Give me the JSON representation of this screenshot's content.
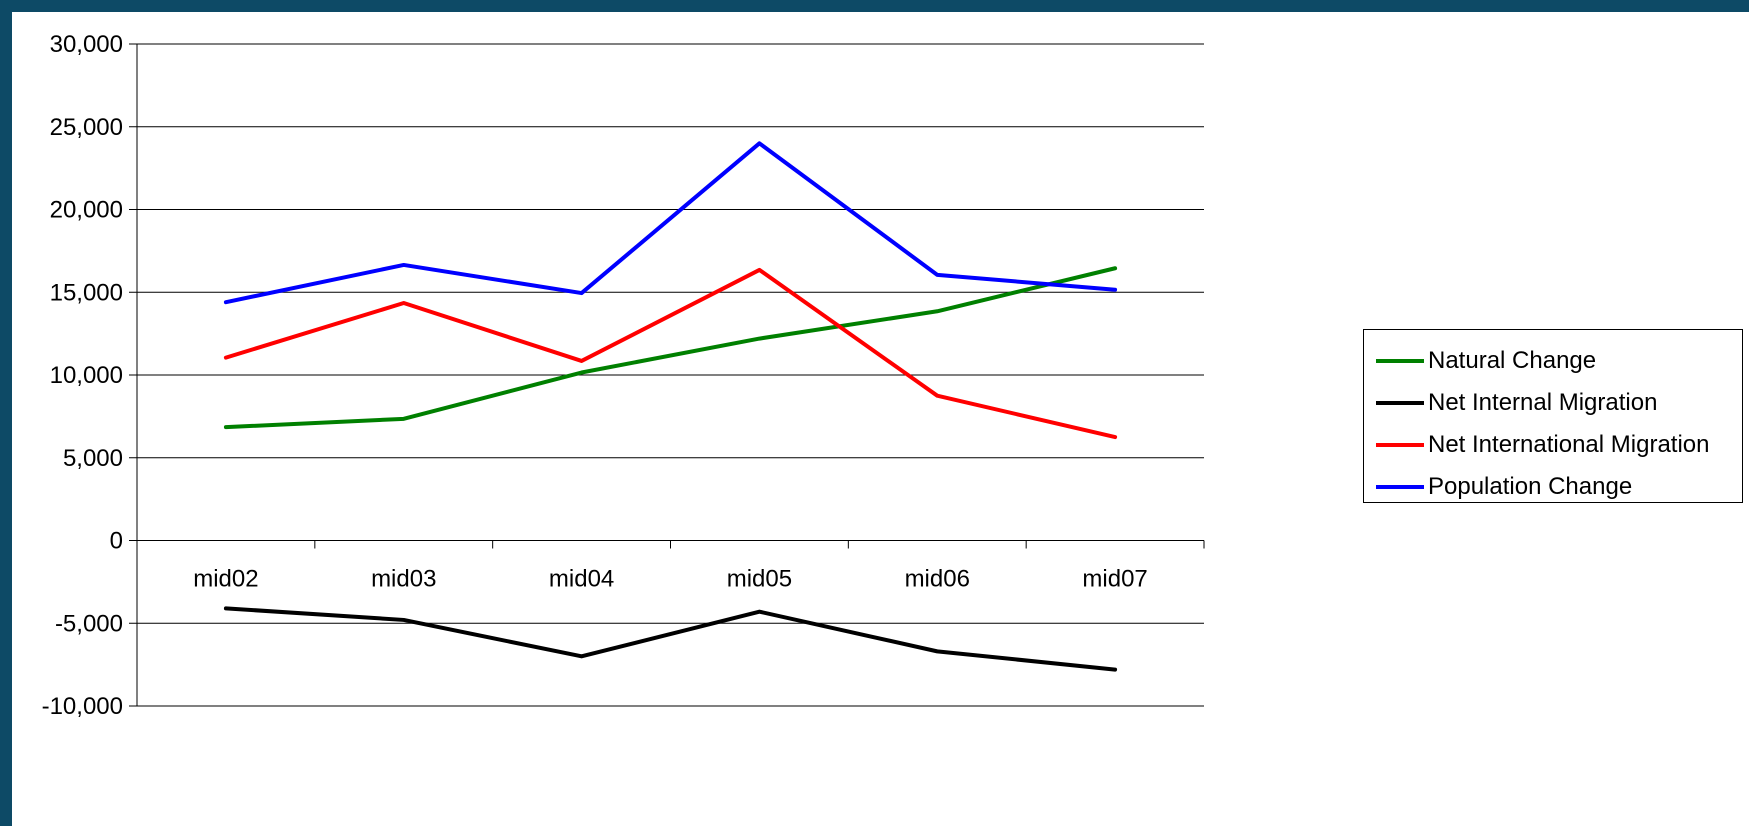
{
  "chart_data": {
    "type": "line",
    "title": "",
    "xlabel": "",
    "ylabel": "",
    "categories": [
      "mid02",
      "mid03",
      "mid04",
      "mid05",
      "mid06",
      "mid07"
    ],
    "ylim": [
      -10000,
      30000
    ],
    "yticks": [
      30000,
      25000,
      20000,
      15000,
      10000,
      5000,
      0,
      -5000,
      -10000
    ],
    "ytick_labels": [
      "30,000",
      "25,000",
      "20,000",
      "15,000",
      "10,000",
      "5,000",
      "0",
      "-5,000",
      "-10,000"
    ],
    "grid": true,
    "legend_position": "right",
    "series": [
      {
        "name": "Natural Change",
        "color": "#008000",
        "values": [
          6850,
          7350,
          10150,
          12200,
          13850,
          16450
        ]
      },
      {
        "name": "Net Internal Migration",
        "color": "#000000",
        "values": [
          -4100,
          -4800,
          -7000,
          -4300,
          -6700,
          -7800
        ]
      },
      {
        "name": "Net International Migration",
        "color": "#ff0000",
        "values": [
          11050,
          14350,
          10850,
          16350,
          8750,
          6250
        ]
      },
      {
        "name": "Population Change",
        "color": "#0000ff",
        "values": [
          14400,
          16650,
          14950,
          24000,
          16050,
          15150
        ]
      }
    ]
  }
}
